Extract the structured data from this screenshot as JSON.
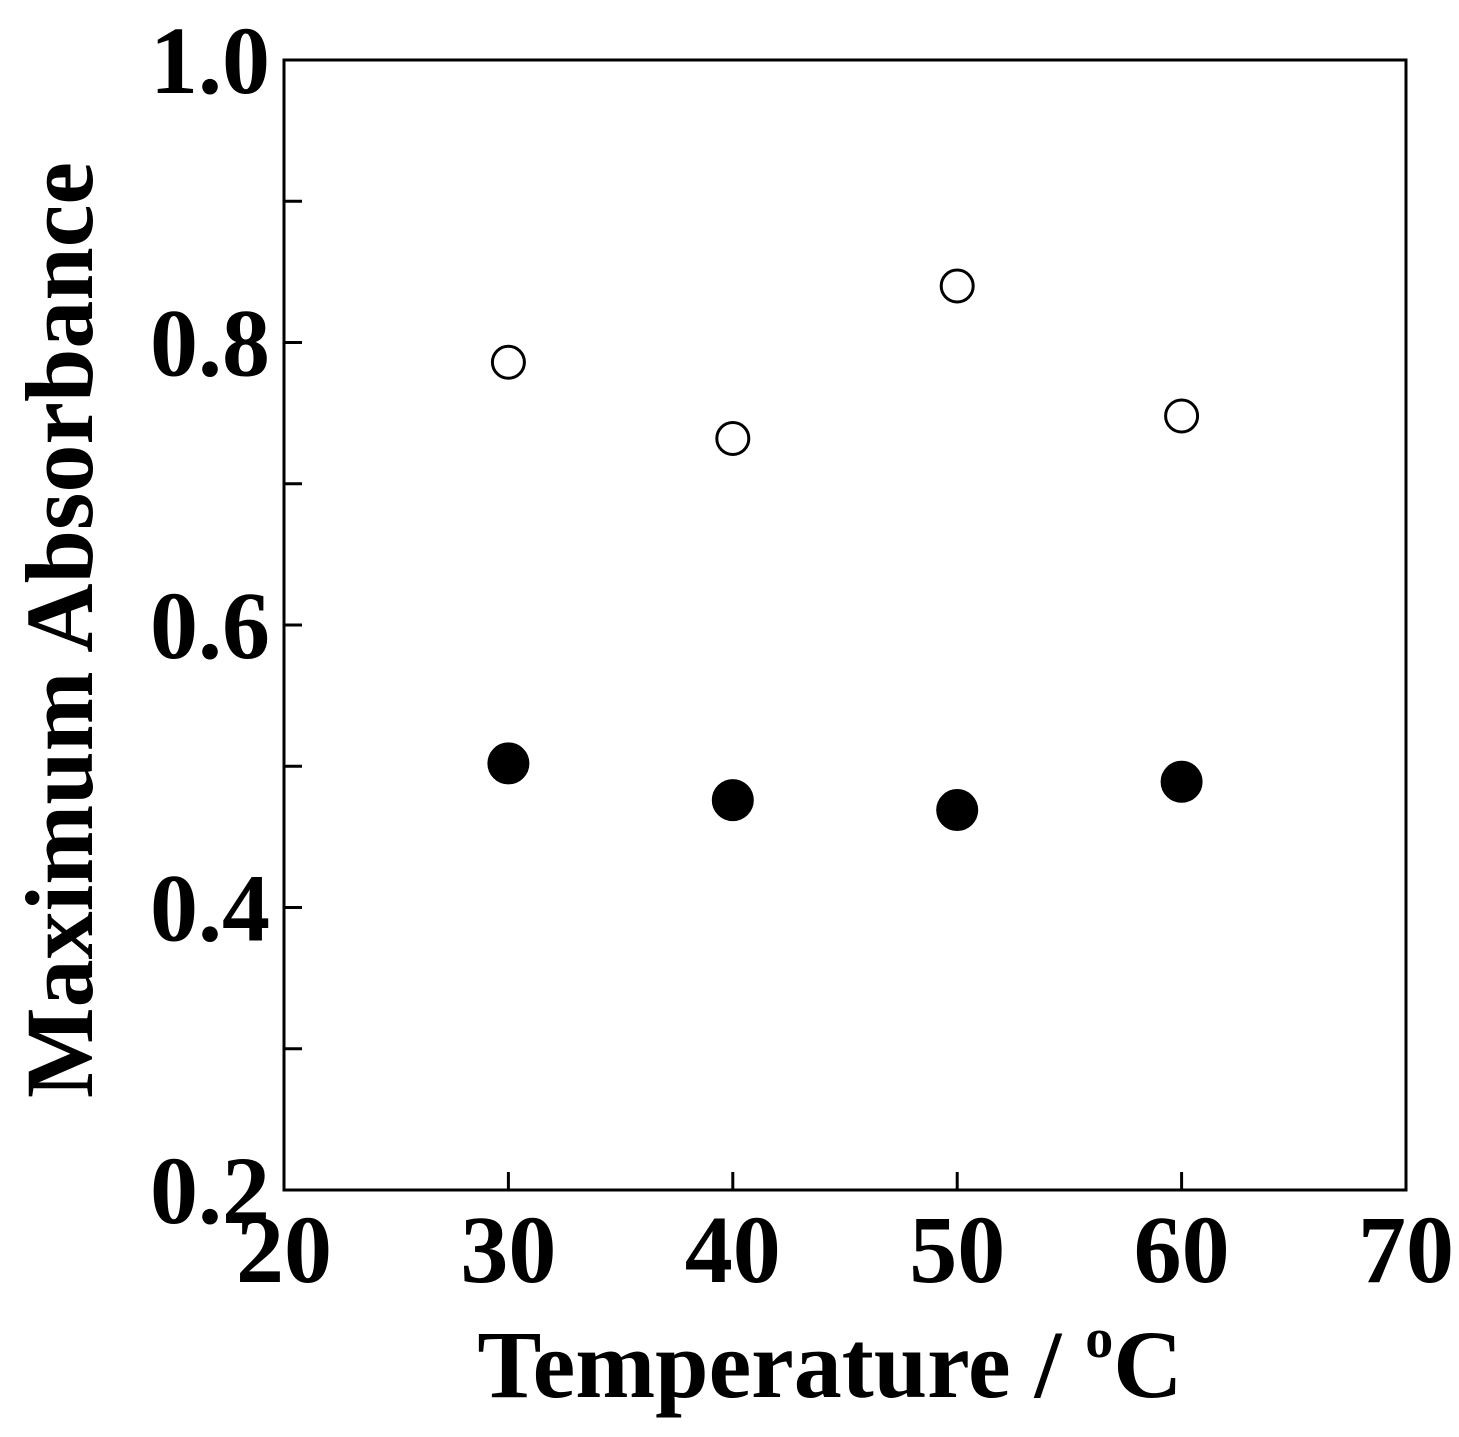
{
  "chart_data": {
    "type": "scatter",
    "xlabel": "Temperature / ",
    "xlabel_degree": "o",
    "xlabel_unit": "C",
    "ylabel": "Maximum Absorbance",
    "xlim": [
      20,
      70
    ],
    "ylim": [
      0.2,
      1.0
    ],
    "x_ticks": [
      "20",
      "30",
      "40",
      "50",
      "60",
      "70"
    ],
    "y_ticks": [
      "0.2",
      "0.4",
      "0.6",
      "0.8",
      "1.0"
    ],
    "y_ticks_values": [
      0.2,
      0.4,
      0.6,
      0.8,
      1.0
    ],
    "y_minor_ticks": [
      0.3,
      0.5,
      0.7,
      0.9
    ],
    "grid": false,
    "series": [
      {
        "marker": "open-circle",
        "color": "#000000",
        "x": [
          30,
          40,
          50,
          60
        ],
        "y": [
          0.786,
          0.732,
          0.84,
          0.748
        ]
      },
      {
        "marker": "filled-circle",
        "color": "#000000",
        "x": [
          30,
          40,
          50,
          60
        ],
        "y": [
          0.502,
          0.476,
          0.469,
          0.489
        ]
      }
    ]
  }
}
